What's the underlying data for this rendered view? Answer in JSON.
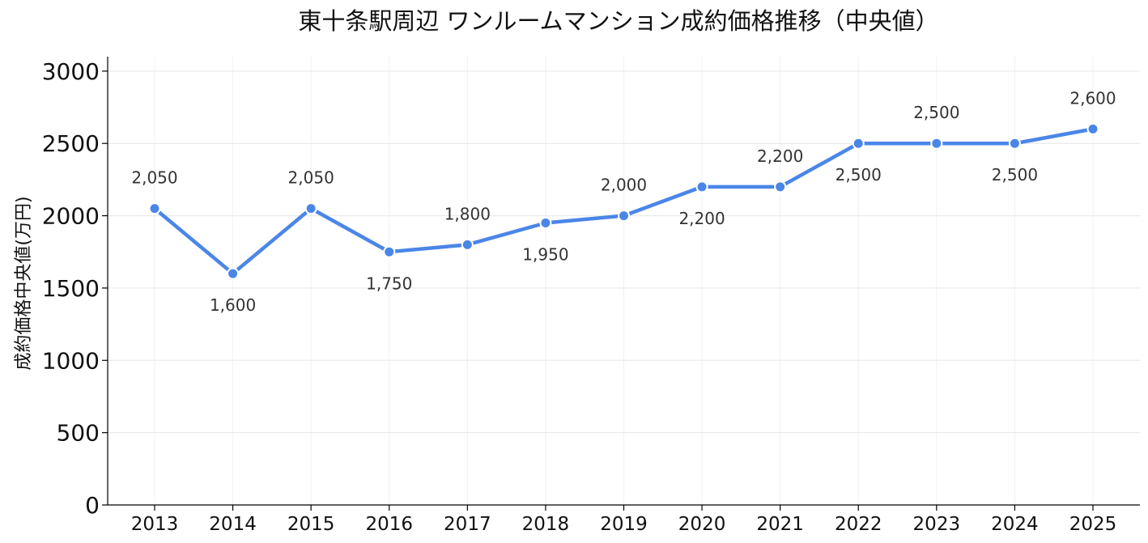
{
  "chart_data": {
    "type": "line",
    "title": "東十条駅周辺 ワンルームマンション成約価格推移（中央値）",
    "xlabel": "",
    "ylabel": "成約価格中央値(万円)",
    "x": [
      "2013",
      "2014",
      "2015",
      "2016",
      "2017",
      "2018",
      "2019",
      "2020",
      "2021",
      "2022",
      "2023",
      "2024",
      "2025"
    ],
    "values": [
      2050,
      1600,
      2050,
      1750,
      1800,
      1950,
      2000,
      2200,
      2200,
      2500,
      2500,
      2500,
      2600
    ],
    "data_labels": [
      "2,050",
      "1,600",
      "2,050",
      "1,750",
      "1,800",
      "1,950",
      "2,000",
      "2,200",
      "2,200",
      "2,500",
      "2,500",
      "2,500",
      "2,600"
    ],
    "label_positions": [
      "above",
      "below",
      "above",
      "below",
      "above",
      "below",
      "above",
      "below",
      "above",
      "below",
      "above",
      "below",
      "above"
    ],
    "yticks": [
      "0",
      "500",
      "1000",
      "1500",
      "2000",
      "2500",
      "3000"
    ],
    "ytick_values": [
      0,
      500,
      1000,
      1500,
      2000,
      2500,
      3000
    ],
    "ylim": [
      0,
      3100
    ],
    "grid": true,
    "line_color": "#4a86e8",
    "marker_color": "#4a86e8"
  }
}
